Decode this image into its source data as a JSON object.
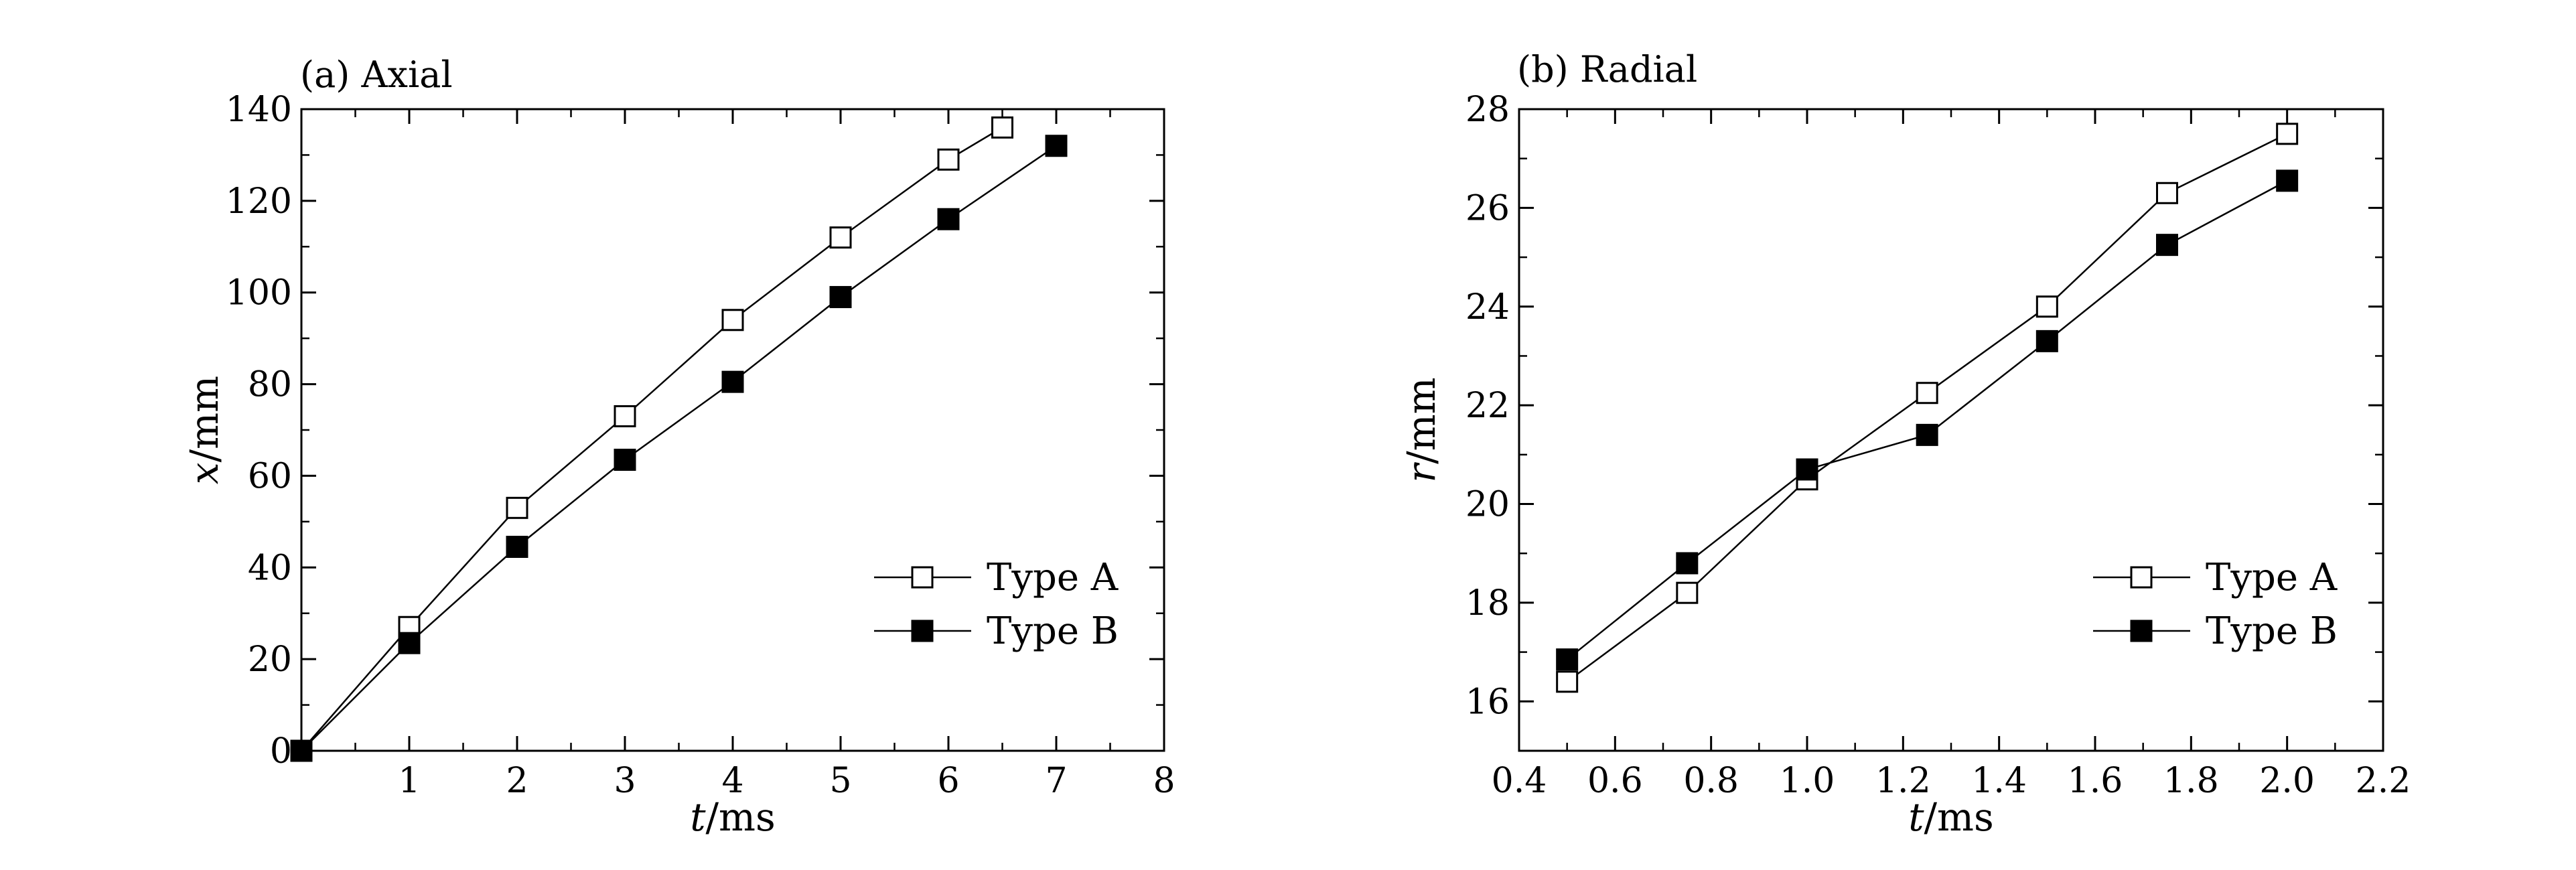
{
  "chart_data": [
    {
      "type": "line",
      "title": "(a) Axial",
      "xlabel_var": "t",
      "xlabel_unit": "/ms",
      "ylabel_var": "x",
      "ylabel_unit": "/mm",
      "xlim": [
        0,
        8
      ],
      "ylim": [
        0,
        140
      ],
      "xticks": [
        1,
        2,
        3,
        4,
        5,
        6,
        7,
        8
      ],
      "yticks": [
        0,
        20,
        40,
        60,
        80,
        100,
        120,
        140
      ],
      "xtick_labels": [
        "1",
        "2",
        "3",
        "4",
        "5",
        "6",
        "7",
        "8"
      ],
      "ytick_labels": [
        "0",
        "20",
        "40",
        "60",
        "80",
        "100",
        "120",
        "140"
      ],
      "grid": false,
      "legend_position": "lower-right",
      "series": [
        {
          "name": "Type A",
          "marker": "open-square",
          "x": [
            0,
            1,
            2,
            3,
            4,
            5,
            6,
            6.5
          ],
          "y": [
            0,
            27,
            53,
            73,
            94,
            112,
            129,
            136
          ]
        },
        {
          "name": "Type B",
          "marker": "filled-square",
          "x": [
            0,
            1,
            2,
            3,
            4,
            5,
            6,
            7
          ],
          "y": [
            0,
            23.5,
            44.5,
            63.5,
            80.5,
            99,
            116,
            132
          ]
        }
      ]
    },
    {
      "type": "line",
      "title": "(b) Radial",
      "xlabel_var": "t",
      "xlabel_unit": "/ms",
      "ylabel_var": "r",
      "ylabel_unit": "/mm",
      "xlim": [
        0.4,
        2.2
      ],
      "ylim": [
        15,
        28
      ],
      "xticks": [
        0.4,
        0.6,
        0.8,
        1.0,
        1.2,
        1.4,
        1.6,
        1.8,
        2.0,
        2.2
      ],
      "yticks": [
        16,
        18,
        20,
        22,
        24,
        26,
        28
      ],
      "xtick_labels": [
        "0.4",
        "0.6",
        "0.8",
        "1.0",
        "1.2",
        "1.4",
        "1.6",
        "1.8",
        "2.0",
        "2.2"
      ],
      "ytick_labels": [
        "16",
        "18",
        "20",
        "22",
        "24",
        "26",
        "28"
      ],
      "grid": false,
      "legend_position": "lower-right",
      "series": [
        {
          "name": "Type A",
          "marker": "open-square",
          "x": [
            0.5,
            0.75,
            1.0,
            1.25,
            1.5,
            1.75,
            2.0
          ],
          "y": [
            16.4,
            18.2,
            20.5,
            22.25,
            24.0,
            26.3,
            27.5
          ]
        },
        {
          "name": "Type B",
          "marker": "filled-square",
          "x": [
            0.5,
            0.75,
            1.0,
            1.25,
            1.5,
            1.75,
            2.0
          ],
          "y": [
            16.85,
            18.8,
            20.7,
            21.4,
            23.3,
            25.25,
            26.55
          ]
        }
      ]
    }
  ]
}
